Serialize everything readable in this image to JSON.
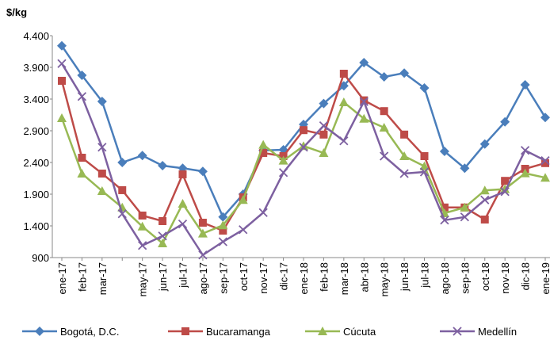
{
  "chart_data": {
    "type": "line",
    "y_label": "$/kg",
    "categories": [
      "ene-17",
      "feb-17",
      "mar-17",
      null,
      "may-17",
      "jun-17",
      "jul-17",
      "ago-17",
      "sep-17",
      "oct-17",
      "nov-17",
      "dic-17",
      "ene-18",
      "feb-18",
      "mar-18",
      "abr-18",
      "may-18",
      "jun-18",
      "jul-18",
      "ago-18",
      "sep-18",
      "oct-18",
      "nov-18",
      "dic-18",
      "ene-19"
    ],
    "series": [
      {
        "name": "Bogotá, D.C.",
        "color": "#4a7ebb",
        "marker": "diamond",
        "values": [
          4240,
          3775,
          3363,
          2400,
          2510,
          2350,
          2310,
          2260,
          1540,
          1900,
          2590,
          2600,
          3000,
          3330,
          3610,
          3975,
          3750,
          3810,
          3575,
          2575,
          2310,
          2690,
          3040,
          3625,
          3110
        ]
      },
      {
        "name": "Bucaramanga",
        "color": "#be4b48",
        "marker": "square",
        "values": [
          3688,
          2475,
          2225,
          1963,
          1563,
          1475,
          2213,
          1450,
          1325,
          1850,
          2550,
          2500,
          2910,
          2840,
          3800,
          3380,
          3210,
          2840,
          2500,
          1690,
          1690,
          1500,
          2110,
          2300,
          2390
        ]
      },
      {
        "name": "Cúcuta",
        "color": "#98b954",
        "marker": "triangle",
        "values": [
          3100,
          2225,
          1950,
          1690,
          1390,
          1125,
          1750,
          1280,
          1410,
          1810,
          2680,
          2430,
          2660,
          2550,
          3350,
          3090,
          2950,
          2500,
          2340,
          1600,
          1690,
          1960,
          1980,
          2230,
          2160
        ]
      },
      {
        "name": "Medellín",
        "color": "#7d60a0",
        "marker": "x",
        "values": [
          3960,
          3440,
          2640,
          1590,
          1090,
          1240,
          1430,
          940,
          1150,
          1340,
          1610,
          2240,
          2640,
          2980,
          2740,
          3360,
          2500,
          2225,
          2250,
          1490,
          1540,
          1810,
          1940,
          2590,
          2430
        ]
      }
    ],
    "ylim": [
      900,
      4400
    ],
    "yticks": [
      900,
      {
        "value": 1400,
        "label": "1.400"
      },
      {
        "value": 1900,
        "label": "1.900"
      },
      {
        "value": 2400,
        "label": "2.400"
      },
      {
        "value": 2900,
        "label": "2.900"
      },
      {
        "value": 3400,
        "label": "3.400"
      },
      {
        "value": 3900,
        "label": "3.900"
      },
      {
        "value": 4400,
        "label": "4.400"
      }
    ],
    "legend": "bottom"
  }
}
